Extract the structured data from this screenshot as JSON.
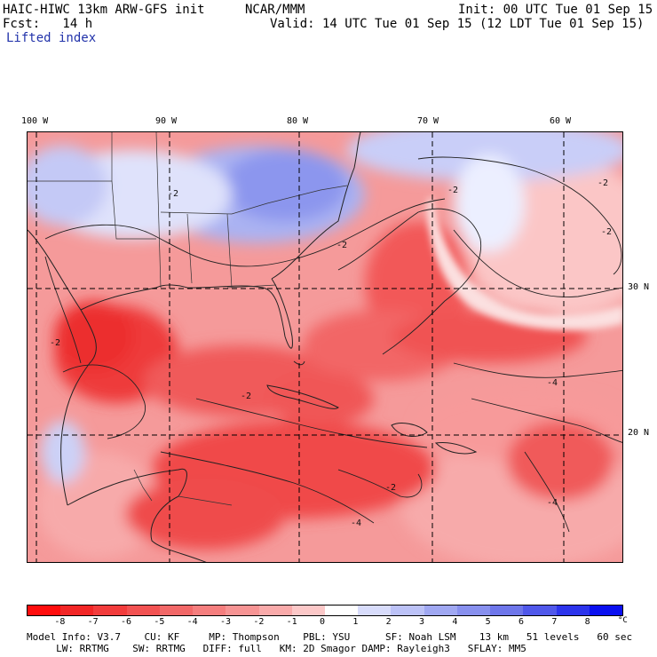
{
  "header": {
    "model": "HAIC-HIWC 13km ARW-GFS init",
    "org": "NCAR/MMM",
    "init": "Init: 00 UTC Tue 01 Sep 15",
    "fcst": "Fcst:   14 h",
    "valid": "Valid: 14 UTC Tue 01 Sep 15 (12 LDT Tue 01 Sep 15)",
    "field": "Lifted index"
  },
  "map": {
    "lon_labels": [
      "100 W",
      "90 W",
      "80 W",
      "70 W",
      "60 W"
    ],
    "lat_labels": [
      "30 N",
      "20 N"
    ],
    "contour_labels": [
      "-2",
      "-2",
      "-2",
      "-2",
      "-2",
      "-2",
      "-2",
      "-4",
      "-2",
      "-4",
      "-4"
    ],
    "colors": {
      "ocean_base": "#f8b4b4",
      "strong_unstable": "#ee3030",
      "stable_blue": "#9aa6ee",
      "neutral": "#ffffff"
    }
  },
  "colorbar": {
    "ticks": [
      "-8",
      "-7",
      "-6",
      "-5",
      "-4",
      "-3",
      "-2",
      "-1",
      "0",
      "1",
      "2",
      "3",
      "4",
      "5",
      "6",
      "7",
      "8"
    ],
    "unit": "°C",
    "colors": [
      "#ff0d0d",
      "#f22626",
      "#f23c3c",
      "#f25252",
      "#f26868",
      "#f57e7e",
      "#f79494",
      "#f9aaaa",
      "#fcc8c8",
      "#ffffff",
      "#d8dcfb",
      "#bcc2f7",
      "#a0a8f2",
      "#8890ee",
      "#6e76ea",
      "#5058ea",
      "#2c34ec",
      "#0a10f0"
    ]
  },
  "footer": {
    "line1": "Model Info: V3.7    CU: KF     MP: Thompson    PBL: YSU      SF: Noah LSM    13 km   51 levels   60 sec",
    "line2": "     LW: RRTMG    SW: RRTMG   DIFF: full   KM: 2D Smagor DAMP: Rayleigh3   SFLAY: MM5"
  }
}
